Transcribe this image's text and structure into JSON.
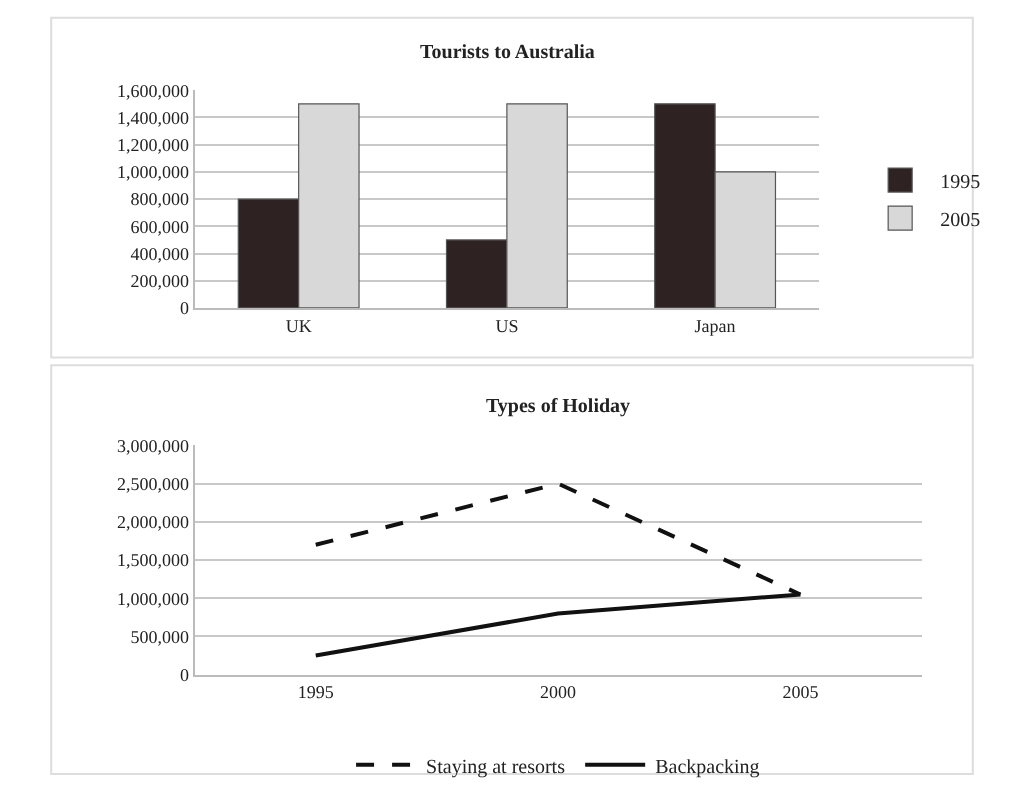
{
  "chart_data": [
    {
      "type": "bar",
      "title": "Tourists to Australia",
      "categories": [
        "UK",
        "US",
        "Japan"
      ],
      "series": [
        {
          "name": "1995",
          "color": "#2e2222",
          "values": [
            800000,
            500000,
            1500000
          ]
        },
        {
          "name": "2005",
          "color": "#d8d8d8",
          "values": [
            1500000,
            1500000,
            1000000
          ]
        }
      ],
      "ylim": [
        0,
        1600000
      ],
      "yticks": [
        {
          "value": 0,
          "label": "0"
        },
        {
          "value": 200000,
          "label": "200,000"
        },
        {
          "value": 400000,
          "label": "400,000"
        },
        {
          "value": 600000,
          "label": "600,000"
        },
        {
          "value": 800000,
          "label": "800,000"
        },
        {
          "value": 1000000,
          "label": "1,000,000"
        },
        {
          "value": 1200000,
          "label": "1,200,000"
        },
        {
          "value": 1400000,
          "label": "1,400,000"
        },
        {
          "value": 1600000,
          "label": "1,600,000"
        }
      ],
      "grid": "y",
      "legend": "right"
    },
    {
      "type": "line",
      "title": "Types of Holiday",
      "categories": [
        "1995",
        "2000",
        "2005"
      ],
      "series": [
        {
          "name": "Staying at resorts",
          "color": "#111111",
          "line_style": "dashed",
          "values": [
            1700000,
            2500000,
            1050000
          ]
        },
        {
          "name": "Backpacking",
          "color": "#111111",
          "line_style": "solid",
          "values": [
            250000,
            800000,
            1050000
          ]
        }
      ],
      "ylim": [
        0,
        3000000
      ],
      "yticks": [
        {
          "value": 0,
          "label": "0"
        },
        {
          "value": 500000,
          "label": "500,000"
        },
        {
          "value": 1000000,
          "label": "1,000,000"
        },
        {
          "value": 1500000,
          "label": "1,500,000"
        },
        {
          "value": 2000000,
          "label": "2,000,000"
        },
        {
          "value": 2500000,
          "label": "2,500,000"
        },
        {
          "value": 3000000,
          "label": "3,000,000"
        }
      ],
      "grid": "y",
      "legend": "bottom",
      "marker": "none"
    }
  ]
}
